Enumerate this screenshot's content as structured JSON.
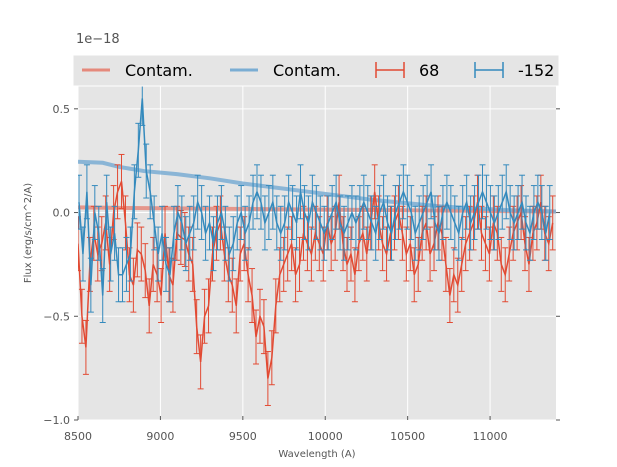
{
  "chart_data": {
    "type": "line",
    "title": "",
    "xlabel": "Wavelength (A)",
    "ylabel": "Flux (erg/s/cm^2/A)",
    "offset_text": "1e−18",
    "xlim": [
      8500,
      11400
    ],
    "ylim": [
      -1.0,
      0.61
    ],
    "x_ticks": [
      8500,
      9000,
      9500,
      10000,
      10500,
      11000
    ],
    "x_tick_labels": [
      "8500",
      "9000",
      "9500",
      "10000",
      "10500",
      "11000"
    ],
    "y_ticks": [
      -1.0,
      -0.5,
      0.0,
      0.5
    ],
    "y_tick_labels": [
      "−1.0",
      "−0.5",
      "0.0",
      "0.5"
    ],
    "grid": true,
    "legend": {
      "placement": "top",
      "entries": [
        {
          "label": "Contam.",
          "kind": "line",
          "color": "#e5897c"
        },
        {
          "label": "Contam.",
          "kind": "line",
          "color": "#7aadd3"
        },
        {
          "label": "68",
          "kind": "errorbar",
          "color": "#e24a33"
        },
        {
          "label": "-152",
          "kind": "errorbar",
          "color": "#348abd"
        }
      ]
    },
    "colors": {
      "red": "#e24a33",
      "blue": "#348abd",
      "red_contam": "#e5897c",
      "blue_contam": "#7aadd3",
      "axes_bg": "#e5e5e5",
      "grid": "#ffffff"
    },
    "contam_series": [
      {
        "name": "Contam.",
        "color": "#e5897c",
        "x": [
          8500,
          8800,
          9100,
          9400,
          9700,
          10000,
          10300,
          10600,
          10900,
          11200,
          11400
        ],
        "y": [
          0.025,
          0.022,
          0.02,
          0.018,
          0.016,
          0.014,
          0.012,
          0.01,
          0.008,
          0.006,
          0.005
        ]
      },
      {
        "name": "Contam.",
        "color": "#7aadd3",
        "x": [
          8500,
          8650,
          8750,
          8900,
          9100,
          9300,
          9500,
          9700,
          9900,
          10100,
          10300,
          10500,
          10700,
          10900,
          11100,
          11400
        ],
        "y": [
          0.245,
          0.24,
          0.22,
          0.2,
          0.185,
          0.165,
          0.14,
          0.12,
          0.1,
          0.08,
          0.06,
          0.045,
          0.03,
          0.02,
          0.012,
          0.005
        ]
      }
    ],
    "series": [
      {
        "name": "68",
        "color": "#e24a33",
        "x_start": 8500,
        "x_step": 24,
        "y": [
          -0.15,
          -0.5,
          -0.65,
          -0.25,
          -0.1,
          -0.2,
          -0.15,
          -0.05,
          -0.25,
          0.0,
          0.1,
          0.15,
          -0.05,
          -0.3,
          -0.35,
          -0.18,
          -0.2,
          -0.28,
          -0.45,
          -0.25,
          -0.3,
          -0.4,
          -0.1,
          -0.3,
          -0.35,
          -0.1,
          -0.12,
          -0.13,
          -0.2,
          -0.25,
          -0.55,
          -0.72,
          -0.5,
          -0.45,
          -0.2,
          -0.1,
          -0.05,
          -0.2,
          -0.3,
          -0.35,
          -0.45,
          -0.2,
          -0.15,
          -0.3,
          -0.4,
          -0.6,
          -0.5,
          -0.55,
          -0.8,
          -0.7,
          -0.45,
          -0.3,
          -0.25,
          -0.2,
          -0.15,
          -0.3,
          -0.25,
          -0.1,
          -0.15,
          -0.2,
          -0.1,
          -0.15,
          -0.2,
          -0.05,
          -0.15,
          -0.1,
          0.05,
          -0.15,
          -0.25,
          -0.2,
          -0.3,
          -0.15,
          -0.1,
          -0.2,
          -0.05,
          0.1,
          -0.05,
          -0.15,
          -0.2,
          -0.1,
          -0.05,
          0.0,
          -0.1,
          -0.2,
          -0.15,
          -0.3,
          -0.25,
          -0.1,
          -0.05,
          -0.2,
          -0.15,
          -0.05,
          -0.1,
          -0.25,
          -0.4,
          -0.3,
          -0.35,
          -0.25,
          -0.15,
          -0.1,
          -0.05,
          0.05,
          -0.1,
          -0.15,
          -0.2,
          -0.05,
          -0.1,
          -0.25,
          -0.3,
          -0.2,
          -0.1,
          -0.05,
          0.0,
          -0.15,
          -0.25,
          -0.1,
          -0.05,
          0.05,
          -0.1,
          -0.15,
          -0.05
        ],
        "err": 0.13
      },
      {
        "name": "-152",
        "color": "#348abd",
        "x_start": 8506,
        "x_step": 24,
        "y": [
          0.05,
          -0.2,
          0.1,
          -0.35,
          0.0,
          -0.1,
          -0.4,
          0.05,
          -0.2,
          -0.1,
          -0.3,
          -0.3,
          -0.25,
          -0.2,
          0.1,
          0.3,
          0.55,
          0.2,
          0.1,
          -0.05,
          -0.2,
          -0.1,
          -0.25,
          -0.3,
          -0.1,
          0.0,
          -0.05,
          -0.15,
          -0.1,
          -0.05,
          0.05,
          0.0,
          -0.1,
          -0.05,
          -0.15,
          -0.05,
          0.0,
          -0.1,
          -0.2,
          -0.15,
          -0.05,
          0.0,
          -0.1,
          -0.05,
          0.05,
          0.1,
          0.05,
          -0.05,
          0.0,
          0.05,
          -0.05,
          -0.1,
          -0.05,
          0.05,
          0.0,
          -0.05,
          0.1,
          0.0,
          -0.05,
          0.05,
          0.0,
          -0.05,
          -0.1,
          -0.05,
          0.0,
          0.05,
          -0.05,
          -0.1,
          -0.05,
          0.0,
          -0.05,
          0.0,
          0.05,
          0.0,
          -0.05,
          -0.1,
          0.0,
          0.05,
          -0.05,
          -0.1,
          0.0,
          0.05,
          0.1,
          0.05,
          0.0,
          -0.1,
          -0.05,
          0.0,
          0.05,
          0.1,
          -0.05,
          -0.1,
          0.0,
          0.05,
          0.0,
          -0.05,
          -0.1,
          0.0,
          0.05,
          -0.05,
          0.0,
          0.05,
          0.1,
          0.05,
          0.0,
          -0.05,
          0.0,
          0.05,
          0.1,
          0.0,
          -0.05,
          0.0,
          0.05,
          -0.05,
          -0.1,
          0.0,
          0.05,
          0.0,
          -0.1,
          0.0
        ],
        "err": 0.13
      }
    ]
  }
}
